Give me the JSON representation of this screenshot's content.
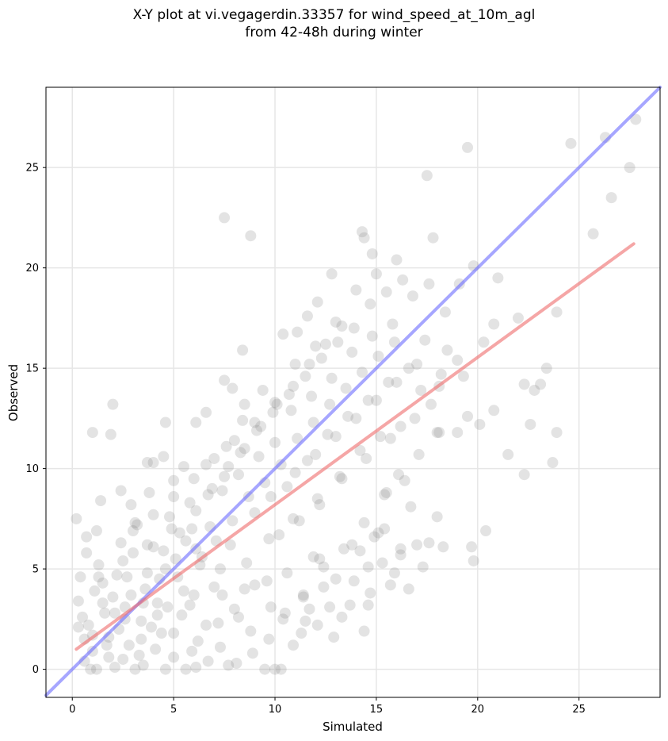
{
  "chart_data": {
    "type": "scatter",
    "title_line1": "X-Y plot at vi.vegagerdin.33357 for wind_speed_at_10m_agl",
    "title_line2": "from 42-48h during winter",
    "xlabel": "Simulated",
    "ylabel": "Observed",
    "xlim": [
      -1.3,
      29.0
    ],
    "ylim": [
      -1.4,
      29.0
    ],
    "xticks": [
      0,
      5,
      10,
      15,
      20,
      25
    ],
    "yticks": [
      0,
      5,
      10,
      15,
      20,
      25
    ],
    "grid": true,
    "point_color": "#808080",
    "identity_line": {
      "color": "#6b6bff",
      "points": [
        [
          -1.3,
          -1.3
        ],
        [
          29.0,
          29.0
        ]
      ]
    },
    "regression_line": {
      "color": "#ef6b6b",
      "points": [
        [
          0.2,
          1.0
        ],
        [
          27.7,
          21.2
        ]
      ]
    },
    "points": [
      [
        0.2,
        7.5
      ],
      [
        1.0,
        11.8
      ],
      [
        2.0,
        13.2
      ],
      [
        1.9,
        11.7
      ],
      [
        0.7,
        6.6
      ],
      [
        0.4,
        4.6
      ],
      [
        0.3,
        3.4
      ],
      [
        0.5,
        2.6
      ],
      [
        0.6,
        1.5
      ],
      [
        0.9,
        0.0
      ],
      [
        1.2,
        0.0
      ],
      [
        2.1,
        0.1
      ],
      [
        3.1,
        0.0
      ],
      [
        3.5,
        0.2
      ],
      [
        4.6,
        0.0
      ],
      [
        5.6,
        0.0
      ],
      [
        6.1,
        0.1
      ],
      [
        7.7,
        0.2
      ],
      [
        9.5,
        0.0
      ],
      [
        10.0,
        0.0
      ],
      [
        0.8,
        2.2
      ],
      [
        1.1,
        3.9
      ],
      [
        1.3,
        5.2
      ],
      [
        1.5,
        4.3
      ],
      [
        1.6,
        2.8
      ],
      [
        1.8,
        1.6
      ],
      [
        2.0,
        3.6
      ],
      [
        2.2,
        4.7
      ],
      [
        2.4,
        6.3
      ],
      [
        2.6,
        3.1
      ],
      [
        2.8,
        1.2
      ],
      [
        3.0,
        5.8
      ],
      [
        3.2,
        7.2
      ],
      [
        3.4,
        2.4
      ],
      [
        3.6,
        4.0
      ],
      [
        3.8,
        8.8
      ],
      [
        4.0,
        6.1
      ],
      [
        4.2,
        3.3
      ],
      [
        4.4,
        1.8
      ],
      [
        4.6,
        5.0
      ],
      [
        4.8,
        7.6
      ],
      [
        5.0,
        9.4
      ],
      [
        5.2,
        4.6
      ],
      [
        5.4,
        2.7
      ],
      [
        5.6,
        6.4
      ],
      [
        5.8,
        8.3
      ],
      [
        6.0,
        3.7
      ],
      [
        6.2,
        1.4
      ],
      [
        6.4,
        5.6
      ],
      [
        6.6,
        10.2
      ],
      [
        6.8,
        7.1
      ],
      [
        7.0,
        4.1
      ],
      [
        7.2,
        2.3
      ],
      [
        7.4,
        8.9
      ],
      [
        7.6,
        11.1
      ],
      [
        7.8,
        6.2
      ],
      [
        8.0,
        3.0
      ],
      [
        8.2,
        9.7
      ],
      [
        8.4,
        12.4
      ],
      [
        8.6,
        5.3
      ],
      [
        8.8,
        1.9
      ],
      [
        9.0,
        7.8
      ],
      [
        9.2,
        10.6
      ],
      [
        9.4,
        13.9
      ],
      [
        9.6,
        4.4
      ],
      [
        9.8,
        8.6
      ],
      [
        10.0,
        11.3
      ],
      [
        10.2,
        6.7
      ],
      [
        10.4,
        2.5
      ],
      [
        10.6,
        9.1
      ],
      [
        10.8,
        12.9
      ],
      [
        11.0,
        15.2
      ],
      [
        11.2,
        7.4
      ],
      [
        11.4,
        3.6
      ],
      [
        11.6,
        10.4
      ],
      [
        11.8,
        13.6
      ],
      [
        12.0,
        16.1
      ],
      [
        12.2,
        8.2
      ],
      [
        12.4,
        5.1
      ],
      [
        12.6,
        11.7
      ],
      [
        12.8,
        14.5
      ],
      [
        13.0,
        17.3
      ],
      [
        13.2,
        9.6
      ],
      [
        13.4,
        6.0
      ],
      [
        13.6,
        12.6
      ],
      [
        13.8,
        15.8
      ],
      [
        14.0,
        18.9
      ],
      [
        14.2,
        10.9
      ],
      [
        14.4,
        7.3
      ],
      [
        14.6,
        13.4
      ],
      [
        14.8,
        16.6
      ],
      [
        15.0,
        19.7
      ],
      [
        15.2,
        11.6
      ],
      [
        15.4,
        8.7
      ],
      [
        15.6,
        14.3
      ],
      [
        15.8,
        17.2
      ],
      [
        16.0,
        20.4
      ],
      [
        16.2,
        12.1
      ],
      [
        16.4,
        9.4
      ],
      [
        16.6,
        15.0
      ],
      [
        16.8,
        18.6
      ],
      [
        17.0,
        6.2
      ],
      [
        17.2,
        13.9
      ],
      [
        17.4,
        16.4
      ],
      [
        17.6,
        19.2
      ],
      [
        17.8,
        21.5
      ],
      [
        18.0,
        11.8
      ],
      [
        18.2,
        14.7
      ],
      [
        18.4,
        17.8
      ],
      [
        14.3,
        21.8
      ],
      [
        14.4,
        21.5
      ],
      [
        14.8,
        20.7
      ],
      [
        12.1,
        18.3
      ],
      [
        11.6,
        17.6
      ],
      [
        11.1,
        16.8
      ],
      [
        10.4,
        16.7
      ],
      [
        12.8,
        19.7
      ],
      [
        8.8,
        21.6
      ],
      [
        7.5,
        22.5
      ],
      [
        17.5,
        24.6
      ],
      [
        19.5,
        26.0
      ],
      [
        24.6,
        26.2
      ],
      [
        26.3,
        26.5
      ],
      [
        27.8,
        27.4
      ],
      [
        27.5,
        25.0
      ],
      [
        26.6,
        23.5
      ],
      [
        25.7,
        21.7
      ],
      [
        21.0,
        19.5
      ],
      [
        19.8,
        20.1
      ],
      [
        19.1,
        19.2
      ],
      [
        20.8,
        17.2
      ],
      [
        22.0,
        17.5
      ],
      [
        20.3,
        16.3
      ],
      [
        23.9,
        17.8
      ],
      [
        23.4,
        15.0
      ],
      [
        19.0,
        15.4
      ],
      [
        19.5,
        12.6
      ],
      [
        20.1,
        12.2
      ],
      [
        20.8,
        12.9
      ],
      [
        22.3,
        14.2
      ],
      [
        22.8,
        13.9
      ],
      [
        23.1,
        14.2
      ],
      [
        22.6,
        12.2
      ],
      [
        23.9,
        11.8
      ],
      [
        21.5,
        10.7
      ],
      [
        22.3,
        9.7
      ],
      [
        23.7,
        10.3
      ],
      [
        19.0,
        11.8
      ],
      [
        18.1,
        11.8
      ],
      [
        18.0,
        7.6
      ],
      [
        18.3,
        6.1
      ],
      [
        19.7,
        6.1
      ],
      [
        19.8,
        5.4
      ],
      [
        20.4,
        6.9
      ],
      [
        17.6,
        6.3
      ],
      [
        17.3,
        5.1
      ],
      [
        16.6,
        4.0
      ],
      [
        15.7,
        4.2
      ],
      [
        15.9,
        4.8
      ],
      [
        16.2,
        5.7
      ],
      [
        14.4,
        1.9
      ],
      [
        12.9,
        1.6
      ],
      [
        11.5,
        2.4
      ],
      [
        10.9,
        1.2
      ],
      [
        13.7,
        3.2
      ],
      [
        14.6,
        3.2
      ],
      [
        15.3,
        5.3
      ],
      [
        14.9,
        6.6
      ],
      [
        8.4,
        15.9
      ],
      [
        7.5,
        14.4
      ],
      [
        7.9,
        14.0
      ],
      [
        8.5,
        13.2
      ],
      [
        6.6,
        12.8
      ],
      [
        6.1,
        12.3
      ],
      [
        4.6,
        12.3
      ],
      [
        4.5,
        10.6
      ],
      [
        4.0,
        10.3
      ],
      [
        3.7,
        10.3
      ],
      [
        5.5,
        10.1
      ],
      [
        2.4,
        8.9
      ],
      [
        1.4,
        8.4
      ],
      [
        1.2,
        6.9
      ],
      [
        2.9,
        8.2
      ],
      [
        3.1,
        7.3
      ],
      [
        0.7,
        5.8
      ],
      [
        0.3,
        2.1
      ],
      [
        0.6,
        0.4
      ],
      [
        1.0,
        0.9
      ],
      [
        1.7,
        1.2
      ],
      [
        2.5,
        0.5
      ],
      [
        3.3,
        0.7
      ],
      [
        4.1,
        1.0
      ],
      [
        5.0,
        0.6
      ],
      [
        5.9,
        0.9
      ],
      [
        6.7,
        0.4
      ],
      [
        7.3,
        1.1
      ],
      [
        8.1,
        0.3
      ],
      [
        8.9,
        0.8
      ],
      [
        9.7,
        1.5
      ],
      [
        10.3,
        0.0
      ],
      [
        10.5,
        2.8
      ],
      [
        11.3,
        1.8
      ],
      [
        12.1,
        2.2
      ],
      [
        12.7,
        3.1
      ],
      [
        13.3,
        2.6
      ],
      [
        13.9,
        4.4
      ],
      [
        14.2,
        5.9
      ],
      [
        14.7,
        3.8
      ],
      [
        15.1,
        6.8
      ],
      [
        15.5,
        8.8
      ],
      [
        16.1,
        9.7
      ],
      [
        16.7,
        8.1
      ],
      [
        17.1,
        10.7
      ],
      [
        17.7,
        13.2
      ],
      [
        18.1,
        14.1
      ],
      [
        18.5,
        15.9
      ],
      [
        19.3,
        14.6
      ],
      [
        12.4,
        4.1
      ],
      [
        11.9,
        5.6
      ],
      [
        11.7,
        3.0
      ],
      [
        1.5,
        3.3
      ],
      [
        2.3,
        2.0
      ],
      [
        2.7,
        4.6
      ],
      [
        3.5,
        3.3
      ],
      [
        3.9,
        2.1
      ],
      [
        4.3,
        4.5
      ],
      [
        4.7,
        3.1
      ],
      [
        5.1,
        5.5
      ],
      [
        5.5,
        3.9
      ],
      [
        5.9,
        7.0
      ],
      [
        6.3,
        5.2
      ],
      [
        6.7,
        8.7
      ],
      [
        7.1,
        6.4
      ],
      [
        7.5,
        9.6
      ],
      [
        7.9,
        7.4
      ],
      [
        8.3,
        10.8
      ],
      [
        8.7,
        8.6
      ],
      [
        9.1,
        11.9
      ],
      [
        9.5,
        9.3
      ],
      [
        9.9,
        12.8
      ],
      [
        10.3,
        10.2
      ],
      [
        10.7,
        13.7
      ],
      [
        11.1,
        11.5
      ],
      [
        11.5,
        14.6
      ],
      [
        11.9,
        12.3
      ],
      [
        12.3,
        15.5
      ],
      [
        12.7,
        13.2
      ],
      [
        13.1,
        16.3
      ],
      [
        13.5,
        14.0
      ],
      [
        13.9,
        17.0
      ],
      [
        14.3,
        14.8
      ],
      [
        14.7,
        18.2
      ],
      [
        15.1,
        15.6
      ],
      [
        15.5,
        18.8
      ],
      [
        15.9,
        16.3
      ],
      [
        16.3,
        19.4
      ],
      [
        2.1,
        2.8
      ],
      [
        2.9,
        3.7
      ],
      [
        3.7,
        4.8
      ],
      [
        4.5,
        5.9
      ],
      [
        5.3,
        6.8
      ],
      [
        6.1,
        7.9
      ],
      [
        6.9,
        9.0
      ],
      [
        7.7,
        10.1
      ],
      [
        8.5,
        11.0
      ],
      [
        9.3,
        12.1
      ],
      [
        10.1,
        13.2
      ],
      [
        10.9,
        14.1
      ],
      [
        11.7,
        15.2
      ],
      [
        12.5,
        16.2
      ],
      [
        13.3,
        17.1
      ],
      [
        1.0,
        1.7
      ],
      [
        1.8,
        0.6
      ],
      [
        2.6,
        2.5
      ],
      [
        3.4,
        1.5
      ],
      [
        4.2,
        2.7
      ],
      [
        5.0,
        1.8
      ],
      [
        5.8,
        3.2
      ],
      [
        6.6,
        2.2
      ],
      [
        7.4,
        3.7
      ],
      [
        8.2,
        2.6
      ],
      [
        9.0,
        4.2
      ],
      [
        9.8,
        3.1
      ],
      [
        10.6,
        4.8
      ],
      [
        11.4,
        3.7
      ],
      [
        12.2,
        5.5
      ],
      [
        13.0,
        4.5
      ],
      [
        13.8,
        6.2
      ],
      [
        14.6,
        5.1
      ],
      [
        15.4,
        7.0
      ],
      [
        16.2,
        6.0
      ],
      [
        3.0,
        6.9
      ],
      [
        4.0,
        7.7
      ],
      [
        5.0,
        8.6
      ],
      [
        6.0,
        9.5
      ],
      [
        7.0,
        10.5
      ],
      [
        8.0,
        11.4
      ],
      [
        9.0,
        12.3
      ],
      [
        10.0,
        13.3
      ],
      [
        11.0,
        9.8
      ],
      [
        12.0,
        10.7
      ],
      [
        13.0,
        11.6
      ],
      [
        14.0,
        12.5
      ],
      [
        15.0,
        13.4
      ],
      [
        16.0,
        14.3
      ],
      [
        17.0,
        15.2
      ],
      [
        1.3,
        4.6
      ],
      [
        2.5,
        5.4
      ],
      [
        3.7,
        6.2
      ],
      [
        4.9,
        7.0
      ],
      [
        6.1,
        6.0
      ],
      [
        7.3,
        5.0
      ],
      [
        8.5,
        4.0
      ],
      [
        9.7,
        6.5
      ],
      [
        10.9,
        7.5
      ],
      [
        12.1,
        8.5
      ],
      [
        13.3,
        9.5
      ],
      [
        14.5,
        10.5
      ],
      [
        15.7,
        11.5
      ],
      [
        16.9,
        12.5
      ]
    ]
  }
}
